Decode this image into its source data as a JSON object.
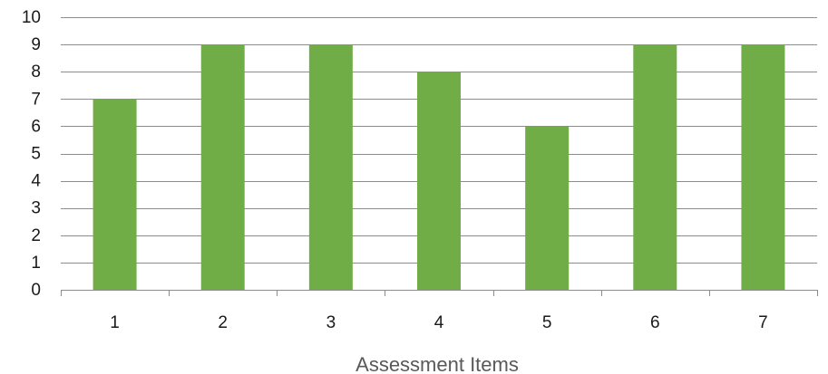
{
  "chart_data": {
    "type": "bar",
    "title": "",
    "xlabel": "Assessment Items",
    "ylabel": "",
    "categories": [
      "1",
      "2",
      "3",
      "4",
      "5",
      "6",
      "7"
    ],
    "values": [
      7,
      9,
      9,
      8,
      6,
      9,
      9
    ],
    "ylim": [
      0,
      10
    ],
    "yticks": [
      0,
      1,
      2,
      3,
      4,
      5,
      6,
      7,
      8,
      9,
      10
    ],
    "grid": true,
    "legend": "none",
    "bar_color": "#70AD47",
    "grid_color": "#8C8C8C"
  }
}
